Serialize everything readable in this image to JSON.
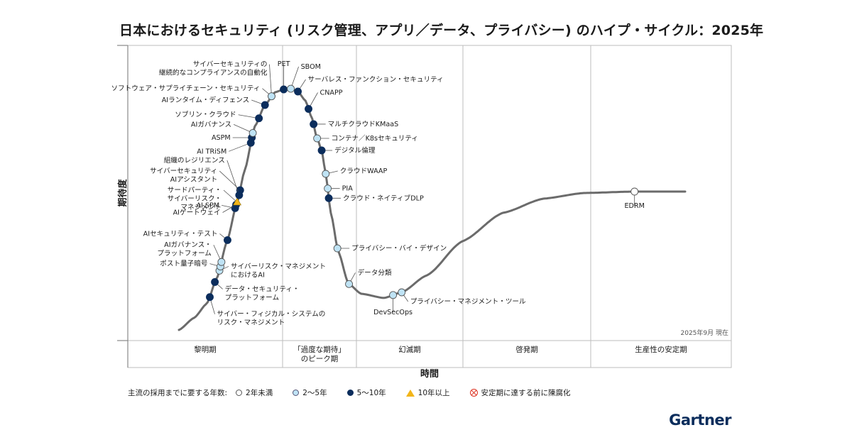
{
  "title": "日本におけるセキュリティ (リスク管理、アプリ／データ、プライバシー) のハイプ・サイクル：2025年",
  "logo": "Gartner",
  "chart_data": {
    "type": "hype-cycle",
    "y_axis_label": "期待度",
    "x_axis_label": "時間",
    "as_of": "2025年9月 現在",
    "phases": [
      {
        "label": "黎明期"
      },
      {
        "label": "「過度な期待」\nのピーク期"
      },
      {
        "label": "幻滅期"
      },
      {
        "label": "啓発期"
      },
      {
        "label": "生産性の安定期"
      }
    ],
    "legend": {
      "lead": "主流の採用までに要する年数:",
      "items": [
        {
          "key": "white",
          "label": "2年未満"
        },
        {
          "key": "light",
          "label": "2〜5年"
        },
        {
          "key": "dark",
          "label": "5〜10年"
        },
        {
          "key": "tri",
          "label": "10年以上"
        },
        {
          "key": "x",
          "label": "安定期に達する前に陳腐化"
        }
      ]
    },
    "colors": {
      "white": "#ffffff",
      "light": "#bfe3f5",
      "dark": "#0b2d5c",
      "tri": "#f2b51a",
      "curve": "#6b6b6b"
    },
    "technologies": [
      {
        "name": "サイバー・フィジカル・システムの\nリスク・マネジメント",
        "position": 0.061,
        "adoption": "dark"
      },
      {
        "name": "データ・セキュリティ・\nプラットフォーム",
        "position": 0.071,
        "adoption": "dark"
      },
      {
        "name": "サイバーリスク・マネジメント\nにおけるAI",
        "position": 0.08,
        "adoption": "light"
      },
      {
        "name": "ポスト量子暗号",
        "position": 0.082,
        "adoption": "light"
      },
      {
        "name": "AIガバナンス・\nプラットフォーム",
        "position": 0.084,
        "adoption": "light"
      },
      {
        "name": "AIセキュリティ・テスト",
        "position": 0.096,
        "adoption": "dark"
      },
      {
        "name": "AI SPM",
        "position": 0.111,
        "adoption": "dark"
      },
      {
        "name": "AIゲートウェイ",
        "position": 0.113,
        "adoption": "dark"
      },
      {
        "name": "サードパーティ・\nサイバーリスク・\nマネジメント",
        "position": 0.115,
        "adoption": "tri"
      },
      {
        "name": "サイバーセキュリティ\nAIアシスタント",
        "position": 0.121,
        "adoption": "dark"
      },
      {
        "name": "組織のレジリエンス",
        "position": 0.119,
        "adoption": "dark"
      },
      {
        "name": "AI TRiSM",
        "position": 0.142,
        "adoption": "dark"
      },
      {
        "name": "ASPM",
        "position": 0.144,
        "adoption": "dark"
      },
      {
        "name": "AIガバナンス",
        "position": 0.146,
        "adoption": "light"
      },
      {
        "name": "ソブリン・クラウド",
        "position": 0.158,
        "adoption": "dark"
      },
      {
        "name": "AIランタイム・ディフェンス",
        "position": 0.17,
        "adoption": "dark"
      },
      {
        "name": "ソフトウェア・サプライチェーン・セキュリティ",
        "position": 0.183,
        "adoption": "light"
      },
      {
        "name": "サイバーセキュリティの\n継続的なコンプライアンスの自動化",
        "position": 0.183,
        "adoption": "light"
      },
      {
        "name": "PET",
        "position": 0.207,
        "adoption": "dark"
      },
      {
        "name": "SBOM",
        "position": 0.221,
        "adoption": "light"
      },
      {
        "name": "サーバレス・ファンクション・セキュリティ",
        "position": 0.235,
        "adoption": "dark"
      },
      {
        "name": "CNAPP",
        "position": 0.256,
        "adoption": "dark"
      },
      {
        "name": "マルチクラウドKMaaS",
        "position": 0.266,
        "adoption": "dark"
      },
      {
        "name": "コンテナ／K8sセキュリティ",
        "position": 0.273,
        "adoption": "light"
      },
      {
        "name": "デジタル倫理",
        "position": 0.282,
        "adoption": "dark"
      },
      {
        "name": "クラウドWAAP",
        "position": 0.29,
        "adoption": "light"
      },
      {
        "name": "PIA",
        "position": 0.294,
        "adoption": "light"
      },
      {
        "name": "クラウド・ネイティブDLP",
        "position": 0.296,
        "adoption": "dark"
      },
      {
        "name": "プライバシー・バイ・デザイン",
        "position": 0.313,
        "adoption": "light"
      },
      {
        "name": "データ分類",
        "position": 0.336,
        "adoption": "light"
      },
      {
        "name": "DevSecOps",
        "position": 0.423,
        "adoption": "light"
      },
      {
        "name": "プライバシー・マネジメント・ツール",
        "position": 0.44,
        "adoption": "light"
      },
      {
        "name": "EDRM",
        "position": 0.9,
        "adoption": "white"
      }
    ]
  }
}
